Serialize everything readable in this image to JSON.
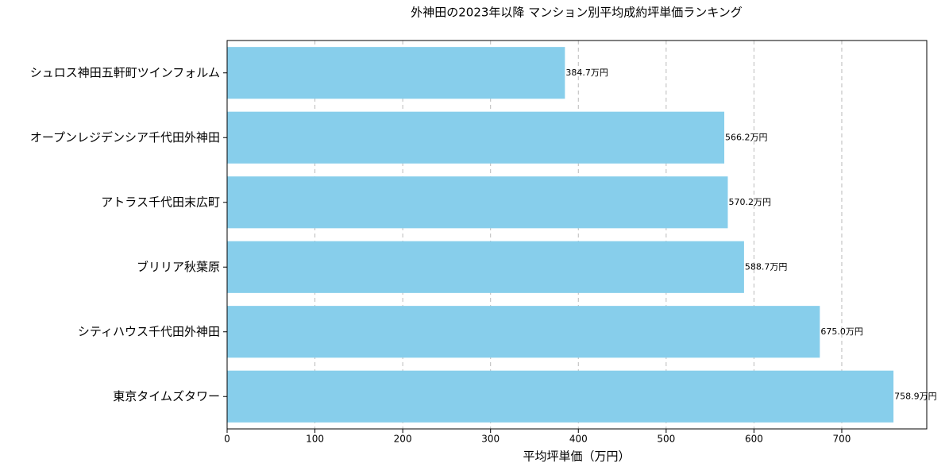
{
  "chart_data": {
    "type": "barh",
    "title": "外神田の2023年以降 マンション別平均成約坪単価ランキング",
    "xlabel": "平均坪単価（万円）",
    "categories": [
      "シュロス神田五軒町ツインフォルム",
      "オープンレジデンシア千代田外神田",
      "アトラス千代田末広町",
      "ブリリア秋葉原",
      "シティハウス千代田外神田",
      "東京タイムズタワー"
    ],
    "values": [
      384.7,
      566.2,
      570.2,
      588.7,
      675.0,
      758.9
    ],
    "value_labels": [
      "384.7万円",
      "566.2万円",
      "570.2万円",
      "588.7万円",
      "675.0万円",
      "758.9万円"
    ],
    "color": "#87ceeb",
    "xlim": [
      0,
      796.8
    ],
    "xticks": [
      0,
      100,
      200,
      300,
      400,
      500,
      600,
      700
    ],
    "grid": true
  }
}
